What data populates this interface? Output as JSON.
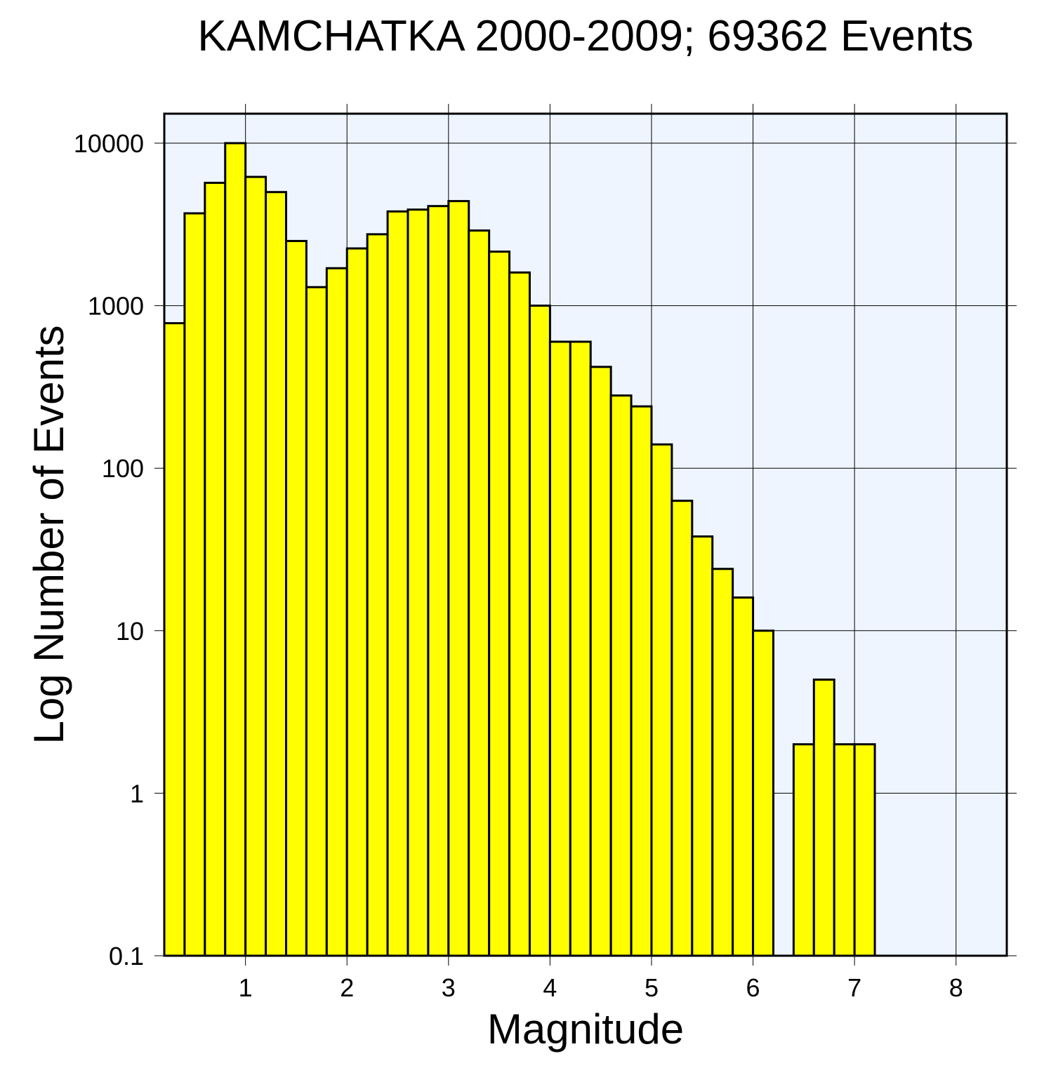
{
  "chart_data": {
    "type": "bar",
    "title": "KAMCHATKA 2000-2009; 69362 Events",
    "xlabel": "Magnitude",
    "ylabel": "Log Number of Events",
    "y_scale": "log",
    "xlim": [
      0.2,
      8.5
    ],
    "ylim": [
      0.1,
      10000
    ],
    "bin_width": 0.2,
    "grid": true,
    "x_ticks": [
      "1",
      "2",
      "3",
      "4",
      "5",
      "6",
      "7",
      "8"
    ],
    "y_ticks": [
      "0.1",
      "1",
      "10",
      "100",
      "1000",
      "10000"
    ],
    "bins": [
      {
        "x": 0.3,
        "y": 780
      },
      {
        "x": 0.5,
        "y": 3700
      },
      {
        "x": 0.7,
        "y": 5700
      },
      {
        "x": 0.9,
        "y": 10000
      },
      {
        "x": 1.1,
        "y": 6200
      },
      {
        "x": 1.3,
        "y": 5000
      },
      {
        "x": 1.5,
        "y": 2500
      },
      {
        "x": 1.7,
        "y": 1300
      },
      {
        "x": 1.9,
        "y": 1700
      },
      {
        "x": 2.1,
        "y": 2250
      },
      {
        "x": 2.3,
        "y": 2750
      },
      {
        "x": 2.5,
        "y": 3800
      },
      {
        "x": 2.7,
        "y": 3900
      },
      {
        "x": 2.9,
        "y": 4100
      },
      {
        "x": 3.1,
        "y": 4400
      },
      {
        "x": 3.3,
        "y": 2900
      },
      {
        "x": 3.5,
        "y": 2150
      },
      {
        "x": 3.7,
        "y": 1600
      },
      {
        "x": 3.9,
        "y": 1000
      },
      {
        "x": 4.1,
        "y": 600
      },
      {
        "x": 4.3,
        "y": 600
      },
      {
        "x": 4.5,
        "y": 420
      },
      {
        "x": 4.7,
        "y": 280
      },
      {
        "x": 4.9,
        "y": 240
      },
      {
        "x": 5.1,
        "y": 140
      },
      {
        "x": 5.3,
        "y": 63
      },
      {
        "x": 5.5,
        "y": 38
      },
      {
        "x": 5.7,
        "y": 24
      },
      {
        "x": 5.9,
        "y": 16
      },
      {
        "x": 6.1,
        "y": 10
      },
      {
        "x": 6.5,
        "y": 2
      },
      {
        "x": 6.7,
        "y": 5
      },
      {
        "x": 6.9,
        "y": 2
      },
      {
        "x": 7.1,
        "y": 2
      }
    ]
  },
  "colors": {
    "plot_background": "#eef5ff",
    "bar_fill": "#ffff00",
    "bar_stroke": "#000000",
    "grid": "#000000"
  }
}
